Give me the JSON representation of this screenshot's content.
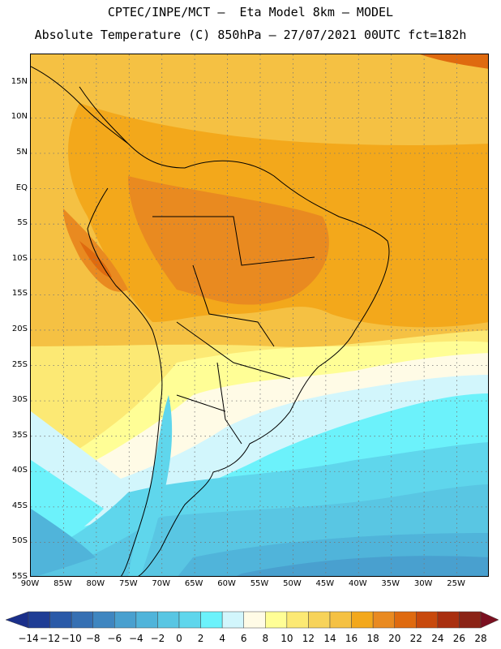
{
  "title_line1": "CPTEC/INPE/MCT –  Eta Model 8km – MODEL",
  "title_line2": "Absolute Temperature (C) 850hPa – 27/07/2021 00UTC fct=182h",
  "map": {
    "lon_range": [
      -90,
      -20
    ],
    "lat_range": [
      -55,
      19
    ],
    "lat_labels": [
      "15N",
      "10N",
      "5N",
      "EQ",
      "5S",
      "10S",
      "15S",
      "20S",
      "25S",
      "30S",
      "35S",
      "40S",
      "45S",
      "50S",
      "55S"
    ],
    "lat_values": [
      15,
      10,
      5,
      0,
      -5,
      -10,
      -15,
      -20,
      -25,
      -30,
      -35,
      -40,
      -45,
      -50,
      -55
    ],
    "lon_labels": [
      "90W",
      "85W",
      "80W",
      "75W",
      "70W",
      "65W",
      "60W",
      "55W",
      "50W",
      "45W",
      "40W",
      "35W",
      "30W",
      "25W"
    ],
    "lon_values": [
      -90,
      -85,
      -80,
      -75,
      -70,
      -65,
      -60,
      -55,
      -50,
      -45,
      -40,
      -35,
      -30,
      -25
    ],
    "gridlines": true
  },
  "colorbar": {
    "labels": [
      "−14",
      "−12",
      "−10",
      "−8",
      "−6",
      "−4",
      "−2",
      "0",
      "2",
      "4",
      "6",
      "8",
      "10",
      "12",
      "14",
      "16",
      "18",
      "20",
      "22",
      "24",
      "26",
      "28"
    ],
    "values": [
      -14,
      -12,
      -10,
      -8,
      -6,
      -4,
      -2,
      0,
      2,
      4,
      6,
      8,
      10,
      12,
      14,
      16,
      18,
      20,
      22,
      24,
      26,
      28
    ],
    "colors": [
      "#1f3d95",
      "#2a5aa8",
      "#3670b3",
      "#3f86c0",
      "#49a0cf",
      "#50b4da",
      "#59c6e3",
      "#5fd6ec",
      "#6cf2fb",
      "#d2f6fc",
      "#fffbe6",
      "#fffe96",
      "#fce974",
      "#f7d35a",
      "#f5c143",
      "#f3a81b",
      "#e98a20",
      "#df6a0f",
      "#c8490c",
      "#a92f0f",
      "#8b2315"
    ],
    "low_color": "#1a2f8a",
    "high_color": "#7a1020"
  }
}
